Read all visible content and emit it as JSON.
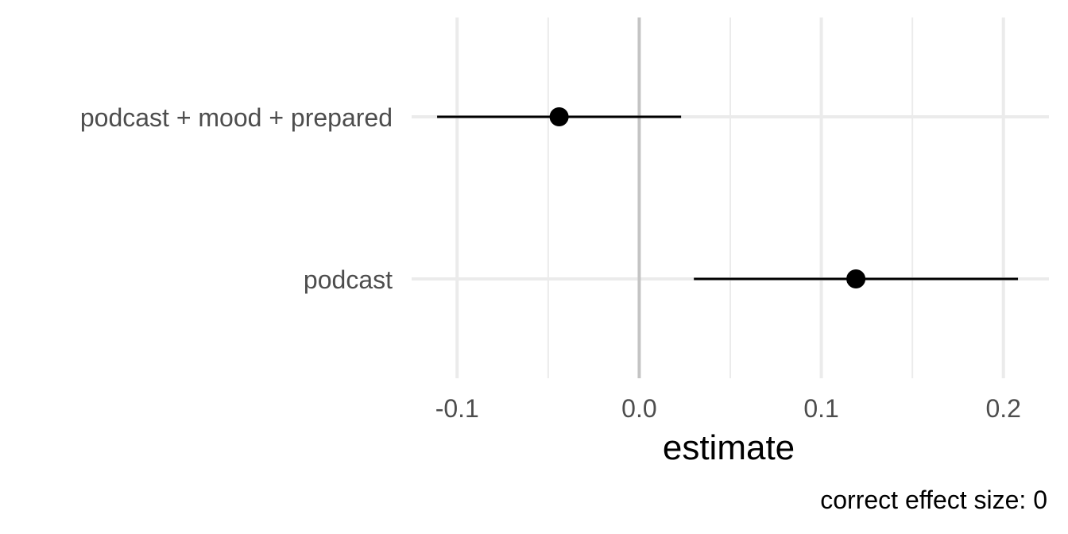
{
  "chart_data": {
    "type": "scatter",
    "subtype": "point-range",
    "xlabel": "estimate",
    "ylabel": "",
    "caption": "correct effect size: 0",
    "xlim": [
      -0.125,
      0.225
    ],
    "x_ticks": [
      -0.1,
      0.0,
      0.1,
      0.2
    ],
    "x_tick_labels": [
      "-0.1",
      "0.0",
      "0.1",
      "0.2"
    ],
    "x_minor_ticks": [
      -0.05,
      0.05,
      0.15
    ],
    "reference_line": 0.0,
    "categories": [
      "podcast + mood + prepared",
      "podcast"
    ],
    "points": [
      {
        "label": "podcast + mood + prepared",
        "estimate": -0.044,
        "low": -0.111,
        "high": 0.023
      },
      {
        "label": "podcast",
        "estimate": 0.119,
        "low": 0.03,
        "high": 0.208
      }
    ],
    "grid": true,
    "legend": "none",
    "colors": {
      "point": "#000000",
      "grid": "#ebebeb",
      "reference": "#c4c4c4",
      "tick_text": "#4d4d4d"
    }
  }
}
